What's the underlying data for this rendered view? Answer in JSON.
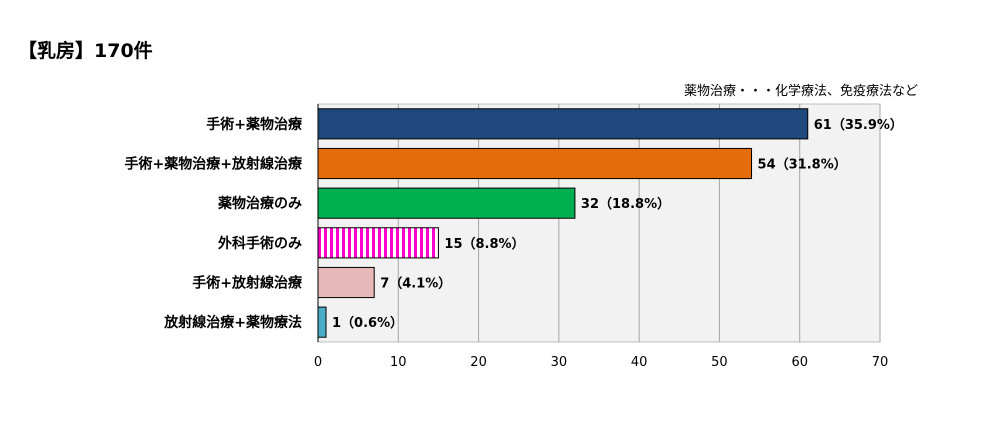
{
  "chart_data": {
    "type": "bar",
    "orientation": "horizontal",
    "title": "【乳房】170件",
    "note": "薬物治療・・・化学療法、免疫療法など",
    "categories": [
      "手術+薬物治療",
      "手術+薬物治療+放射線治療",
      "薬物治療のみ",
      "外科手術のみ",
      "手術+放射線治療",
      "放射線治療+薬物療法"
    ],
    "values": [
      61,
      54,
      32,
      15,
      7,
      1
    ],
    "data_labels": [
      "61（35.9%）",
      "54（31.8%）",
      "32（18.8%）",
      "15（8.8%）",
      "7（4.1%）",
      "1（0.6%）"
    ],
    "bar_colors": [
      "#1f497d",
      "#e46c0a",
      "#00b050",
      "#ff66ff",
      "#e6b9b8",
      "#4bacc6"
    ],
    "bar_patterns": [
      "solid",
      "solid",
      "solid",
      "vertical-stripes",
      "solid",
      "solid"
    ],
    "xlim": [
      0,
      70
    ],
    "xticks": [
      0,
      10,
      20,
      30,
      40,
      50,
      60,
      70
    ],
    "grid": true,
    "plot_background": "#f2f2f2"
  }
}
